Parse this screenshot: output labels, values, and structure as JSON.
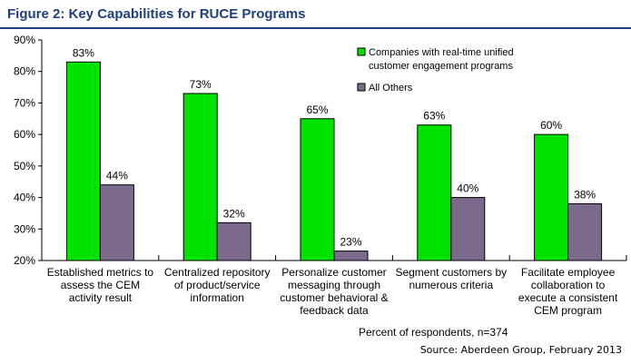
{
  "figure": {
    "title": "Figure 2: Key Capabilities for RUCE Programs",
    "footnote": "Percent of respondents, n=374",
    "source": "Source: Aberdeen Group, February 2013"
  },
  "chart_data": {
    "type": "bar",
    "categories": [
      [
        "Established metrics to",
        "assess the CEM",
        "activity result"
      ],
      [
        "Centralized repository",
        "of product/service",
        "information"
      ],
      [
        "Personalize customer",
        "messaging through",
        "customer behavioral &",
        "feedback data"
      ],
      [
        "Segment customers by",
        "numerous criteria"
      ],
      [
        "Facilitate employee",
        "collaboration to",
        "execute a consistent",
        "CEM program"
      ]
    ],
    "series": [
      {
        "name": "Companies with real-time unified customer engagement programs",
        "legend_lines": [
          "Companies with real-time unified",
          "customer engagement programs"
        ],
        "color": "#00e300",
        "values": [
          83,
          73,
          65,
          63,
          60
        ],
        "labels": [
          "83%",
          "73%",
          "65%",
          "63%",
          "60%"
        ]
      },
      {
        "name": "All Others",
        "legend_lines": [
          "All Others"
        ],
        "color": "#7b6a8c",
        "values": [
          44,
          32,
          23,
          40,
          38
        ],
        "labels": [
          "44%",
          "32%",
          "23%",
          "40%",
          "38%"
        ]
      }
    ],
    "ylim": [
      20,
      90
    ],
    "yticks": [
      20,
      30,
      40,
      50,
      60,
      70,
      80,
      90
    ],
    "ytick_labels": [
      "20%",
      "30%",
      "40%",
      "50%",
      "60%",
      "70%",
      "80%",
      "90%"
    ],
    "grid": false,
    "legend_position": "top-right",
    "xlabel": "",
    "ylabel": ""
  }
}
